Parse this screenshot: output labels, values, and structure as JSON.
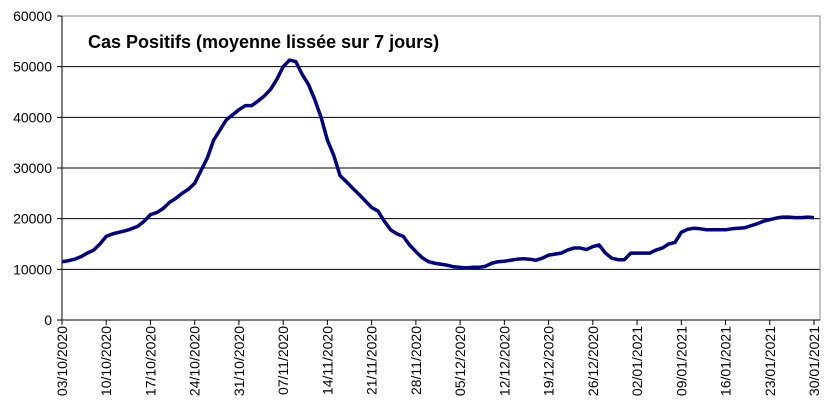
{
  "chart_data": {
    "type": "line",
    "title": "Cas Positifs (moyenne lissée sur 7 jours)",
    "categories": [
      "03/10/2020",
      null,
      null,
      null,
      null,
      null,
      null,
      "10/10/2020",
      null,
      null,
      null,
      null,
      null,
      null,
      "17/10/2020",
      null,
      null,
      null,
      null,
      null,
      null,
      "24/10/2020",
      null,
      null,
      null,
      null,
      null,
      null,
      "31/10/2020",
      null,
      null,
      null,
      null,
      null,
      null,
      "07/11/2020",
      null,
      null,
      null,
      null,
      null,
      null,
      "14/11/2020",
      null,
      null,
      null,
      null,
      null,
      null,
      "21/11/2020",
      null,
      null,
      null,
      null,
      null,
      null,
      "28/11/2020",
      null,
      null,
      null,
      null,
      null,
      null,
      "05/12/2020",
      null,
      null,
      null,
      null,
      null,
      null,
      "12/12/2020",
      null,
      null,
      null,
      null,
      null,
      null,
      "19/12/2020",
      null,
      null,
      null,
      null,
      null,
      null,
      "26/12/2020",
      null,
      null,
      null,
      null,
      null,
      null,
      "02/01/2021",
      null,
      null,
      null,
      null,
      null,
      null,
      "09/01/2021",
      null,
      null,
      null,
      null,
      null,
      null,
      "16/01/2021",
      null,
      null,
      null,
      null,
      null,
      null,
      "23/01/2021",
      null,
      null,
      null,
      null,
      null,
      null,
      "30/01/2021"
    ],
    "values": [
      11500,
      11700,
      12000,
      12500,
      13200,
      13800,
      15000,
      16500,
      17000,
      17300,
      17600,
      18000,
      18500,
      19500,
      20800,
      21200,
      22000,
      23200,
      24000,
      25000,
      25800,
      27000,
      29500,
      32000,
      35500,
      37500,
      39500,
      40500,
      41500,
      42300,
      42300,
      43200,
      44200,
      45500,
      47500,
      50000,
      51300,
      51000,
      48500,
      46500,
      43500,
      40000,
      35500,
      32500,
      28500,
      27300,
      26000,
      24800,
      23500,
      22200,
      21500,
      19500,
      17800,
      17000,
      16500,
      14800,
      13500,
      12300,
      11500,
      11200,
      11000,
      10800,
      10500,
      10400,
      10300,
      10400,
      10400,
      10600,
      11200,
      11500,
      11600,
      11800,
      12000,
      12100,
      12000,
      11800,
      12200,
      12800,
      13000,
      13200,
      13800,
      14200,
      14200,
      13900,
      14500,
      14800,
      13200,
      12200,
      11900,
      11900,
      13200,
      13200,
      13200,
      13200,
      13800,
      14200,
      15000,
      15300,
      17300,
      17900,
      18100,
      18000,
      17800,
      17800,
      17800,
      17800,
      18000,
      18100,
      18200,
      18600,
      19000,
      19500,
      19800,
      20100,
      20300,
      20300,
      20200,
      20200,
      20300,
      20200
    ],
    "color": "#000080",
    "ylim": [
      0,
      60000
    ],
    "yticks": [
      0,
      10000,
      20000,
      30000,
      40000,
      50000,
      60000
    ],
    "grid": true
  }
}
